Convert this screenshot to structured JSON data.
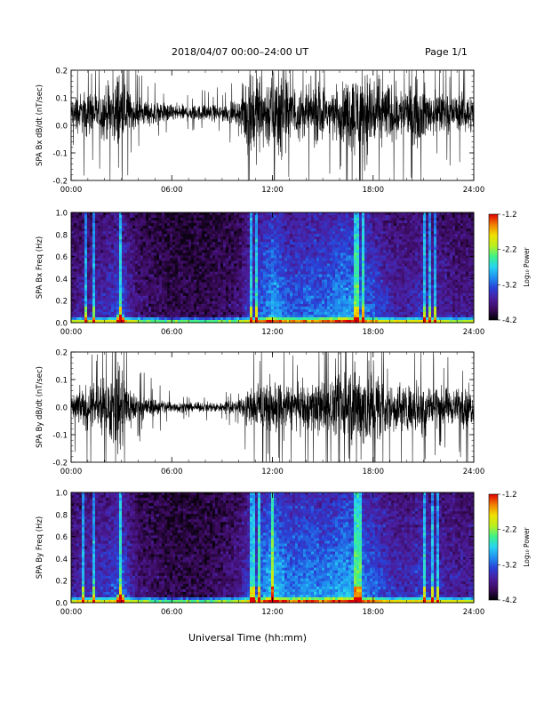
{
  "header": {
    "title": "2018/04/07   00:00–24:00 UT",
    "page": "Page 1/1"
  },
  "footer": {
    "xlabel": "Universal Time (hh:mm)"
  },
  "colorbar": {
    "label": "Log₁₀ Power",
    "ticks": [
      "-1.2",
      "-2.2",
      "-3.2",
      "-4.2"
    ],
    "stops": [
      "#000000",
      "#3a0a5a",
      "#4b1d9c",
      "#2a3fd6",
      "#1f8ef0",
      "#27d3f0",
      "#3df08a",
      "#b8f020",
      "#f0e000",
      "#f08000",
      "#e00000"
    ]
  },
  "chart_data": [
    {
      "type": "line",
      "title": "",
      "ylabel": "SPA Bx dB/dt (nT/sec)",
      "xlabel": "",
      "x_ticks": [
        "00:00",
        "06:00",
        "12:00",
        "18:00",
        "24:00"
      ],
      "y_ticks": [
        "0.2",
        "0.1",
        "0.0",
        "-0.1",
        "-0.2"
      ],
      "xlim": [
        0,
        24
      ],
      "ylim": [
        -0.2,
        0.2
      ],
      "envelope": {
        "hours": [
          0,
          0.5,
          1,
          1.5,
          2,
          2.5,
          2.8,
          3,
          3.3,
          3.5,
          4,
          5,
          6,
          7,
          8,
          9,
          10,
          10.5,
          11,
          11.5,
          12,
          12.5,
          13,
          13.5,
          14,
          14.5,
          15,
          15.5,
          16,
          16.5,
          17,
          17.5,
          18,
          18.5,
          19,
          19.5,
          20,
          20.5,
          21,
          21.5,
          22,
          22.5,
          23,
          23.5,
          24
        ],
        "amplitude": [
          0.07,
          0.09,
          0.1,
          0.1,
          0.12,
          0.13,
          0.2,
          0.2,
          0.12,
          0.09,
          0.06,
          0.05,
          0.04,
          0.035,
          0.035,
          0.04,
          0.05,
          0.2,
          0.2,
          0.15,
          0.2,
          0.2,
          0.13,
          0.12,
          0.11,
          0.14,
          0.12,
          0.11,
          0.12,
          0.15,
          0.2,
          0.2,
          0.2,
          0.16,
          0.13,
          0.12,
          0.11,
          0.14,
          0.12,
          0.1,
          0.09,
          0.08,
          0.08,
          0.09,
          0.08
        ],
        "center": 0.045
      }
    },
    {
      "type": "heatmap",
      "title": "",
      "ylabel": "SPA Bx Freq (Hz)",
      "xlabel": "",
      "x_ticks": [
        "00:00",
        "06:00",
        "12:00",
        "18:00",
        "24:00"
      ],
      "y_ticks": [
        "1.0",
        "0.8",
        "0.6",
        "0.4",
        "0.2",
        "0.0"
      ],
      "xlim": [
        0,
        24
      ],
      "ylim": [
        0,
        1.0
      ],
      "color_range": [
        -4.2,
        -1.2
      ],
      "activity": {
        "hours": [
          0,
          1,
          2,
          2.5,
          3,
          3.5,
          4,
          6,
          8,
          10,
          10.5,
          11,
          12,
          12.5,
          13,
          14,
          15,
          16,
          16.5,
          17,
          18,
          19,
          20,
          21,
          22,
          23,
          24
        ],
        "level": [
          0.3,
          0.35,
          0.4,
          0.45,
          0.55,
          0.35,
          0.25,
          0.15,
          0.15,
          0.25,
          0.4,
          0.5,
          0.75,
          0.65,
          0.55,
          0.6,
          0.6,
          0.7,
          0.72,
          0.65,
          0.55,
          0.4,
          0.35,
          0.45,
          0.35,
          0.3,
          0.3
        ]
      },
      "bright_columns": [
        0.9,
        1.3,
        2.9,
        3.0,
        10.7,
        11.1,
        17.0,
        17.4,
        21.1,
        21.4,
        21.7
      ]
    },
    {
      "type": "line",
      "title": "",
      "ylabel": "SPA By dB/dt (nT/sec)",
      "xlabel": "",
      "x_ticks": [
        "00:00",
        "06:00",
        "12:00",
        "18:00",
        "24:00"
      ],
      "y_ticks": [
        "0.2",
        "0.1",
        "0.0",
        "-0.1",
        "-0.2"
      ],
      "xlim": [
        0,
        24
      ],
      "ylim": [
        -0.2,
        0.2
      ],
      "envelope": {
        "hours": [
          0,
          0.5,
          1,
          1.5,
          2,
          2.5,
          2.8,
          3,
          3.3,
          3.5,
          4,
          5,
          6,
          7,
          8,
          9,
          10,
          10.5,
          11,
          11.5,
          12,
          12.5,
          13,
          13.5,
          14,
          14.5,
          15,
          15.5,
          16,
          16.5,
          17,
          17.5,
          18,
          18.5,
          19,
          19.5,
          20,
          20.5,
          21,
          21.5,
          22,
          22.5,
          23,
          23.5,
          24
        ],
        "amplitude": [
          0.06,
          0.08,
          0.1,
          0.1,
          0.12,
          0.16,
          0.2,
          0.2,
          0.13,
          0.1,
          0.06,
          0.04,
          0.03,
          0.02,
          0.02,
          0.025,
          0.03,
          0.08,
          0.1,
          0.11,
          0.12,
          0.12,
          0.1,
          0.1,
          0.11,
          0.12,
          0.11,
          0.11,
          0.13,
          0.2,
          0.2,
          0.2,
          0.18,
          0.14,
          0.12,
          0.11,
          0.1,
          0.12,
          0.13,
          0.11,
          0.09,
          0.08,
          0.08,
          0.09,
          0.08
        ],
        "center": 0.0
      }
    },
    {
      "type": "heatmap",
      "title": "",
      "ylabel": "SPA By Freq (Hz)",
      "xlabel": "",
      "x_ticks": [
        "00:00",
        "06:00",
        "12:00",
        "18:00",
        "24:00"
      ],
      "y_ticks": [
        "1.0",
        "0.8",
        "0.6",
        "0.4",
        "0.2",
        "0.0"
      ],
      "xlim": [
        0,
        24
      ],
      "ylim": [
        0,
        1.0
      ],
      "color_range": [
        -4.2,
        -1.2
      ],
      "activity": {
        "hours": [
          0,
          1,
          2,
          2.5,
          3,
          3.5,
          4,
          6,
          8,
          10,
          10.5,
          11,
          12,
          12.5,
          13,
          14,
          15,
          16,
          16.5,
          17,
          18,
          19,
          20,
          21,
          22,
          23,
          24
        ],
        "level": [
          0.35,
          0.4,
          0.45,
          0.5,
          0.6,
          0.4,
          0.25,
          0.15,
          0.15,
          0.3,
          0.45,
          0.55,
          0.85,
          0.75,
          0.65,
          0.7,
          0.65,
          0.75,
          0.78,
          0.7,
          0.6,
          0.45,
          0.4,
          0.5,
          0.4,
          0.35,
          0.35
        ]
      },
      "bright_columns": [
        0.7,
        1.3,
        2.9,
        3.0,
        10.8,
        11.2,
        12.0,
        17.0,
        17.3,
        21.1,
        21.5,
        21.8
      ]
    }
  ]
}
